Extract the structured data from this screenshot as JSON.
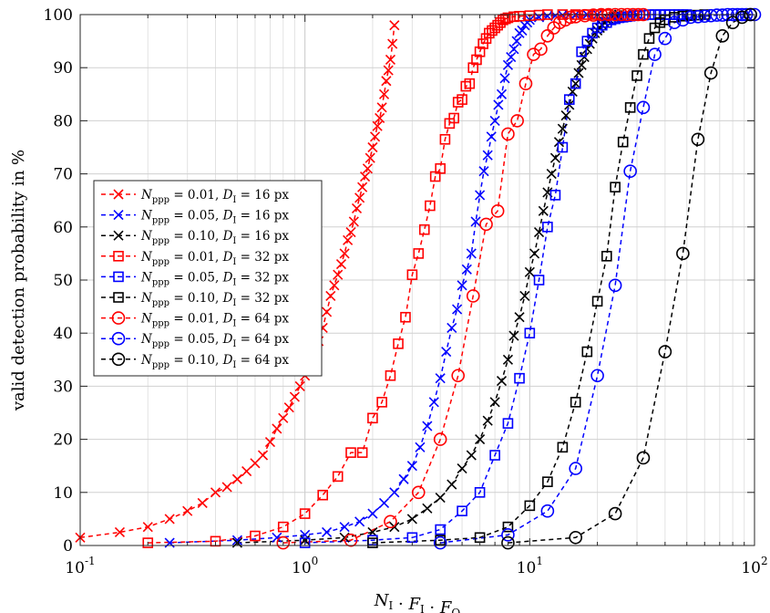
{
  "chart_data": {
    "type": "line",
    "xscale": "log",
    "xlim": [
      0.1,
      100
    ],
    "ylim": [
      0,
      100
    ],
    "grid": true,
    "legend_position": "middle-left",
    "xlabel": "N_I · F_I · F_O",
    "ylabel": "valid detection probability in %",
    "x_ticks": [
      0.1,
      1,
      10,
      100
    ],
    "x_tick_labels": [
      {
        "base": "10",
        "exp": "-1"
      },
      {
        "base": "10",
        "exp": "0"
      },
      {
        "base": "10",
        "exp": "1"
      },
      {
        "base": "10",
        "exp": "2"
      }
    ],
    "y_ticks": [
      "0",
      "10",
      "20",
      "30",
      "40",
      "50",
      "60",
      "70",
      "80",
      "90",
      "100"
    ],
    "series": [
      {
        "name": "N_ppp = 0.01, D_I = 16 px",
        "color": "#ff0000",
        "marker": "x",
        "x": [
          0.1,
          0.15,
          0.2,
          0.25,
          0.3,
          0.35,
          0.4,
          0.45,
          0.5,
          0.55,
          0.6,
          0.65,
          0.7,
          0.75,
          0.8,
          0.85,
          0.9,
          0.95,
          1.0,
          1.05,
          1.1,
          1.15,
          1.2,
          1.25,
          1.3,
          1.35,
          1.4,
          1.45,
          1.5,
          1.55,
          1.6,
          1.65,
          1.7,
          1.75,
          1.8,
          1.85,
          1.9,
          1.95,
          2.0,
          2.05,
          2.1,
          2.15,
          2.2,
          2.25,
          2.3,
          2.35,
          2.4,
          2.45,
          2.5
        ],
        "y": [
          1.5,
          2.5,
          3.5,
          5,
          6.5,
          8,
          10,
          11,
          12.5,
          14,
          15.5,
          17,
          19.5,
          22,
          24,
          26,
          28,
          30,
          32,
          34,
          36.5,
          38.5,
          41,
          44,
          47,
          49,
          51,
          53,
          55,
          57.5,
          59,
          61,
          63.5,
          65.5,
          67.5,
          69.5,
          71,
          73,
          75,
          77,
          79,
          80.5,
          82.5,
          85,
          87.5,
          89.5,
          91.5,
          94.5,
          98
        ]
      },
      {
        "name": "N_ppp = 0.05, D_I = 16 px",
        "color": "#0000ff",
        "marker": "x",
        "x": [
          0.25,
          0.5,
          0.75,
          1.0,
          1.25,
          1.5,
          1.75,
          2.0,
          2.25,
          2.5,
          2.75,
          3.0,
          3.25,
          3.5,
          3.75,
          4.0,
          4.25,
          4.5,
          4.75,
          5.0,
          5.25,
          5.5,
          5.75,
          6.0,
          6.25,
          6.5,
          6.75,
          7.0,
          7.25,
          7.5,
          7.75,
          8.0,
          8.25,
          8.5,
          8.75,
          9.0,
          9.25,
          9.5,
          9.75,
          10.0,
          11,
          12,
          13,
          14,
          15,
          16,
          18,
          20,
          25,
          30
        ],
        "y": [
          0.5,
          1,
          1.5,
          2,
          2.5,
          3.5,
          4.5,
          6,
          8,
          10,
          12.5,
          15,
          18.5,
          22.5,
          27,
          31.5,
          36.5,
          41,
          44.5,
          49,
          52,
          55,
          61,
          66,
          70.5,
          73.5,
          77,
          80,
          83,
          85,
          88,
          90.5,
          92,
          93.5,
          95,
          96.5,
          97,
          98,
          98.5,
          99,
          99.5,
          99.7,
          99.8,
          99.9,
          100,
          100,
          100,
          100,
          100,
          100
        ]
      },
      {
        "name": "N_ppp = 0.10, D_I = 16 px",
        "color": "#000000",
        "marker": "x",
        "x": [
          0.5,
          1.0,
          1.5,
          2.0,
          2.5,
          3.0,
          3.5,
          4.0,
          4.5,
          5.0,
          5.5,
          6.0,
          6.5,
          7.0,
          7.5,
          8.0,
          8.5,
          9.0,
          9.5,
          10.0,
          10.5,
          11.0,
          11.5,
          12.0,
          12.5,
          13.0,
          13.5,
          14.0,
          14.5,
          15.0,
          15.5,
          16.0,
          16.5,
          17.0,
          17.5,
          18.0,
          18.5,
          19.0,
          19.5,
          20.0,
          20.5,
          21.0,
          21.5,
          22.0,
          22.5,
          23.0,
          23.5,
          24.0,
          24.5,
          25.0
        ],
        "y": [
          0.5,
          1,
          1.5,
          2.5,
          3.5,
          5,
          7,
          9,
          11.5,
          14.5,
          17,
          20,
          23.5,
          27,
          31,
          35,
          39.5,
          43,
          47,
          51.5,
          55,
          59,
          63,
          66.5,
          70,
          73,
          76,
          78.5,
          81,
          83,
          85.5,
          87,
          89,
          90.5,
          92,
          93.5,
          94.5,
          95.5,
          96.5,
          97,
          97.5,
          98,
          98.5,
          99,
          99.2,
          99.4,
          99.6,
          99.8,
          99.9,
          100
        ]
      },
      {
        "name": "N_ppp = 0.01, D_I = 32 px",
        "color": "#ff0000",
        "marker": "square",
        "x": [
          0.2,
          0.4,
          0.6,
          0.8,
          1.0,
          1.2,
          1.4,
          1.6,
          1.8,
          2.0,
          2.2,
          2.4,
          2.6,
          2.8,
          3.0,
          3.2,
          3.4,
          3.6,
          3.8,
          4.0,
          4.2,
          4.4,
          4.6,
          4.8,
          5.0,
          5.2,
          5.4,
          5.6,
          5.8,
          6.0,
          6.2,
          6.4,
          6.6,
          6.8,
          7.0,
          7.2,
          7.4,
          7.6,
          7.8,
          8.0,
          8.5,
          9,
          10,
          11,
          12,
          14,
          16,
          18,
          20,
          22
        ],
        "y": [
          0.5,
          0.8,
          1.8,
          3.5,
          6,
          9.5,
          13,
          17.5,
          17.5,
          24,
          27,
          32,
          38,
          43,
          51,
          55,
          59.5,
          64,
          69.5,
          71,
          76.5,
          79.5,
          80.5,
          83.5,
          84,
          86.5,
          87,
          90,
          91.5,
          93,
          94.5,
          95.5,
          96.5,
          97,
          97.5,
          98,
          98.5,
          99,
          99.2,
          99.4,
          99.6,
          99.7,
          99.8,
          99.9,
          100,
          100,
          100,
          100,
          100,
          100
        ]
      },
      {
        "name": "N_ppp = 0.05, D_I = 32 px",
        "color": "#0000ff",
        "marker": "square",
        "x": [
          1.0,
          2.0,
          3.0,
          4.0,
          5.0,
          6.0,
          7.0,
          8.0,
          9.0,
          10.0,
          11.0,
          12.0,
          13.0,
          14.0,
          15.0,
          16.0,
          17.0,
          18.0,
          19.0,
          20.0,
          21,
          22,
          23,
          24,
          25,
          26,
          27,
          28,
          29,
          30,
          32,
          34,
          36,
          38,
          40,
          42,
          44,
          46,
          48,
          50
        ],
        "y": [
          0.5,
          1,
          1.5,
          3,
          6.5,
          10,
          17,
          23,
          31.5,
          40,
          50,
          60,
          66,
          75,
          84,
          87,
          93,
          95,
          96.5,
          97.5,
          98,
          98.5,
          99,
          99.2,
          99.4,
          99.5,
          99.6,
          99.7,
          99.8,
          99.9,
          99.9,
          100,
          100,
          100,
          100,
          100,
          100,
          100,
          100,
          100
        ]
      },
      {
        "name": "N_ppp = 0.10, D_I = 32 px",
        "color": "#000000",
        "marker": "square",
        "x": [
          2.0,
          4.0,
          6.0,
          8.0,
          10.0,
          12.0,
          14.0,
          16.0,
          18.0,
          20.0,
          22.0,
          24.0,
          26.0,
          28.0,
          30.0,
          32.0,
          34.0,
          36.0,
          38.0,
          40.0,
          44,
          48,
          52,
          56,
          60
        ],
        "y": [
          0.5,
          1,
          1.5,
          3.5,
          7.5,
          12,
          18.5,
          27,
          36.5,
          46,
          54.5,
          67.5,
          76,
          82.5,
          88.5,
          92.5,
          95.5,
          97.5,
          98.5,
          99,
          99.5,
          99.7,
          99.8,
          99.9,
          100
        ]
      },
      {
        "name": "N_ppp = 0.01, D_I = 64 px",
        "color": "#ff0000",
        "marker": "circle",
        "x": [
          0.8,
          1.6,
          2.4,
          3.2,
          4.0,
          4.8,
          5.6,
          6.4,
          7.2,
          8.0,
          8.8,
          9.6,
          10.4,
          11.2,
          12.0,
          12.8,
          13.6,
          14.4,
          15.2,
          16.0,
          17.6,
          19.2,
          20.8,
          22.4,
          24.0,
          25.6,
          27.2,
          28.8,
          30.4,
          32.0
        ],
        "y": [
          0.5,
          1,
          4.5,
          10,
          20,
          32,
          47,
          60.5,
          63,
          77.5,
          80,
          87,
          92.5,
          93.5,
          96,
          97.5,
          98.5,
          99,
          99.5,
          99.6,
          99.8,
          99.9,
          100,
          100,
          100,
          100,
          100,
          100,
          100,
          100
        ]
      },
      {
        "name": "N_ppp = 0.05, D_I = 64 px",
        "color": "#0000ff",
        "marker": "circle",
        "x": [
          4.0,
          8.0,
          12.0,
          16.0,
          20.0,
          24.0,
          28.0,
          32.0,
          36.0,
          40.0,
          44.0,
          48.0,
          52.0,
          56.0,
          60.0,
          64.0,
          68.0,
          72.0,
          76.0,
          80.0,
          84,
          88,
          92,
          96,
          100
        ],
        "y": [
          0.5,
          2,
          6.5,
          14.5,
          32,
          49,
          70.5,
          82.5,
          92.5,
          95.5,
          98.5,
          99,
          99.5,
          99.6,
          99.7,
          99.8,
          99.9,
          99.9,
          100,
          100,
          100,
          100,
          100,
          100,
          100
        ]
      },
      {
        "name": "N_ppp = 0.10, D_I = 64 px",
        "color": "#000000",
        "marker": "circle",
        "x": [
          8.0,
          16.0,
          24.0,
          32.0,
          40.0,
          48.0,
          56.0,
          64.0,
          72.0,
          80.0,
          88.0,
          96.0
        ],
        "y": [
          0.5,
          1.5,
          6,
          16.5,
          36.5,
          55,
          76.5,
          89,
          96,
          98.5,
          99.5,
          100
        ]
      }
    ],
    "legend": [
      {
        "sym": "N",
        "sub": "ppp",
        "val": "0.01",
        "dsym": "D",
        "dsub": "I",
        "dval": "16 px"
      },
      {
        "sym": "N",
        "sub": "ppp",
        "val": "0.05",
        "dsym": "D",
        "dsub": "I",
        "dval": "16 px"
      },
      {
        "sym": "N",
        "sub": "ppp",
        "val": "0.10",
        "dsym": "D",
        "dsub": "I",
        "dval": "16 px"
      },
      {
        "sym": "N",
        "sub": "ppp",
        "val": "0.01",
        "dsym": "D",
        "dsub": "I",
        "dval": "32 px"
      },
      {
        "sym": "N",
        "sub": "ppp",
        "val": "0.05",
        "dsym": "D",
        "dsub": "I",
        "dval": "32 px"
      },
      {
        "sym": "N",
        "sub": "ppp",
        "val": "0.10",
        "dsym": "D",
        "dsub": "I",
        "dval": "32 px"
      },
      {
        "sym": "N",
        "sub": "ppp",
        "val": "0.01",
        "dsym": "D",
        "dsub": "I",
        "dval": "64 px"
      },
      {
        "sym": "N",
        "sub": "ppp",
        "val": "0.05",
        "dsym": "D",
        "dsub": "I",
        "dval": "64 px"
      },
      {
        "sym": "N",
        "sub": "ppp",
        "val": "0.10",
        "dsym": "D",
        "dsub": "I",
        "dval": "64 px"
      }
    ],
    "xlabel_parts": [
      {
        "sym": "N",
        "sub": "I"
      },
      {
        "sym": "F",
        "sub": "I"
      },
      {
        "sym": "F",
        "sub": "O"
      }
    ]
  }
}
